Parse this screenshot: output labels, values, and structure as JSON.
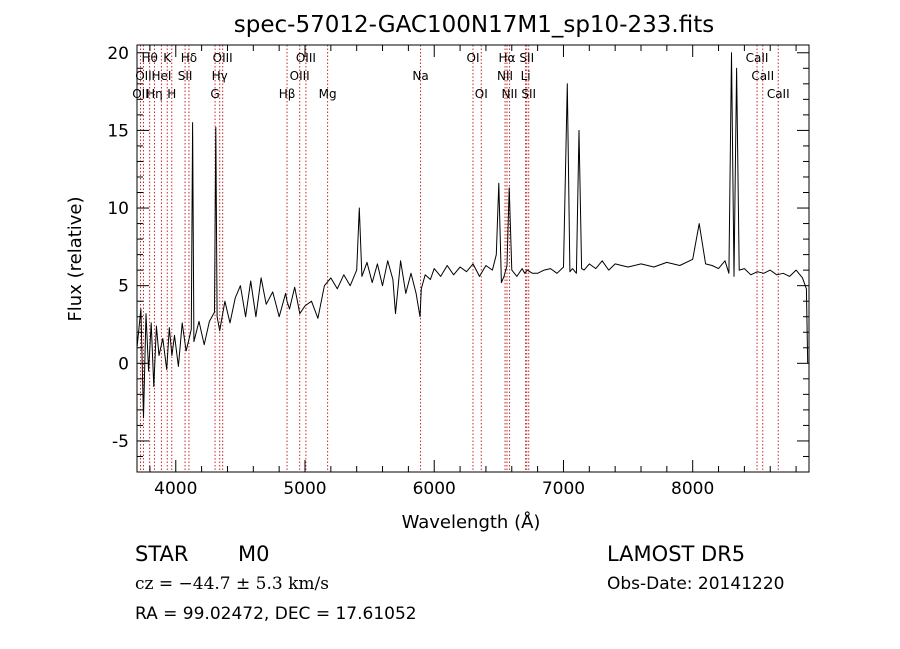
{
  "chart_data": {
    "type": "line",
    "title": "spec-57012-GAC100N17M1_sp10-233.fits",
    "xlabel": "Wavelength (Å)",
    "ylabel": "Flux (relative)",
    "xlim": [
      3700,
      8900
    ],
    "ylim": [
      -7,
      20.5
    ],
    "xticks": [
      4000,
      5000,
      6000,
      7000,
      8000
    ],
    "xtick_labels": [
      "4000",
      "5000",
      "6000",
      "7000",
      "8000"
    ],
    "yticks": [
      -5,
      0,
      5,
      10,
      15,
      20
    ],
    "ytick_labels": [
      "-5",
      "0",
      "5",
      "10",
      "15",
      "20"
    ],
    "grid": false,
    "series": [
      {
        "color": "#000000",
        "x": [
          3700,
          3730,
          3750,
          3770,
          3790,
          3810,
          3830,
          3850,
          3870,
          3900,
          3930,
          3950,
          3970,
          3990,
          4020,
          4050,
          4080,
          4101,
          4120,
          4130,
          4140,
          4180,
          4220,
          4260,
          4300,
          4310,
          4320,
          4340,
          4380,
          4420,
          4460,
          4500,
          4540,
          4580,
          4620,
          4660,
          4700,
          4750,
          4800,
          4850,
          4861,
          4880,
          4920,
          4960,
          5000,
          5050,
          5100,
          5150,
          5200,
          5250,
          5300,
          5350,
          5400,
          5420,
          5440,
          5480,
          5520,
          5560,
          5600,
          5640,
          5680,
          5700,
          5740,
          5780,
          5820,
          5860,
          5890,
          5900,
          5930,
          5970,
          6000,
          6050,
          6100,
          6150,
          6200,
          6250,
          6300,
          6350,
          6400,
          6450,
          6480,
          6500,
          6520,
          6540,
          6563,
          6580,
          6600,
          6640,
          6680,
          6700,
          6720,
          6760,
          6800,
          6850,
          6900,
          6950,
          7000,
          7030,
          7050,
          7070,
          7100,
          7120,
          7140,
          7160,
          7200,
          7250,
          7300,
          7350,
          7400,
          7450,
          7500,
          7600,
          7700,
          7800,
          7900,
          8000,
          8050,
          8100,
          8150,
          8200,
          8250,
          8280,
          8300,
          8320,
          8340,
          8360,
          8400,
          8450,
          8500,
          8550,
          8600,
          8650,
          8700,
          8750,
          8800,
          8850,
          8880,
          8890
        ],
        "y": [
          1.0,
          3.5,
          -3.5,
          3.2,
          -0.5,
          2.6,
          -1.5,
          2.4,
          0.5,
          1.6,
          -0.4,
          2.3,
          0.5,
          1.8,
          -0.2,
          2.6,
          0.8,
          1.5,
          2.2,
          15.5,
          1.4,
          2.7,
          1.2,
          2.7,
          3.3,
          15.2,
          3.0,
          2.1,
          4.0,
          2.6,
          4.2,
          5.0,
          3.0,
          5.3,
          3.0,
          5.5,
          3.8,
          4.6,
          3.0,
          4.5,
          4.0,
          3.5,
          4.9,
          3.2,
          3.7,
          4.0,
          2.9,
          5.0,
          5.5,
          4.8,
          5.7,
          5.0,
          6.0,
          10.0,
          5.6,
          6.5,
          5.2,
          6.4,
          5.0,
          6.6,
          5.4,
          3.2,
          6.6,
          4.5,
          5.8,
          4.5,
          3.0,
          4.8,
          5.7,
          5.4,
          6.1,
          5.6,
          6.3,
          5.7,
          6.2,
          5.9,
          6.4,
          5.6,
          6.3,
          6.0,
          7.0,
          11.6,
          5.2,
          5.6,
          6.3,
          11.3,
          6.0,
          5.6,
          6.1,
          5.8,
          6.0,
          5.8,
          5.8,
          6.0,
          6.1,
          5.8,
          6.2,
          18.0,
          5.9,
          6.1,
          5.8,
          15.0,
          6.1,
          6.0,
          6.4,
          6.1,
          6.6,
          6.0,
          6.4,
          6.3,
          6.2,
          6.4,
          6.2,
          6.5,
          6.3,
          6.7,
          9.0,
          6.4,
          6.3,
          6.1,
          6.6,
          5.8,
          20.0,
          5.6,
          19.0,
          6.0,
          6.1,
          5.7,
          5.9,
          5.8,
          6.0,
          5.7,
          5.8,
          5.6,
          6.0,
          5.5,
          4.8,
          0.0
        ]
      }
    ],
    "line_markers": [
      {
        "wl": 3727,
        "row": 2,
        "label": "OII"
      },
      {
        "wl": 3750,
        "row": 1,
        "label": "OII"
      },
      {
        "wl": 3798,
        "row": 0,
        "label": "Hθ"
      },
      {
        "wl": 3835,
        "row": 2,
        "label": "Hη"
      },
      {
        "wl": 3889,
        "row": 1,
        "label": "HeI"
      },
      {
        "wl": 3934,
        "row": 0,
        "label": "K"
      },
      {
        "wl": 3969,
        "row": 2,
        "label": "H"
      },
      {
        "wl": 4072,
        "row": 1,
        "label": "SII"
      },
      {
        "wl": 4102,
        "row": 0,
        "label": "Hδ"
      },
      {
        "wl": 4304,
        "row": 2,
        "label": "G"
      },
      {
        "wl": 4340,
        "row": 1,
        "label": "Hγ"
      },
      {
        "wl": 4363,
        "row": 0,
        "label": "OIII"
      },
      {
        "wl": 4861,
        "row": 2,
        "label": "Hβ"
      },
      {
        "wl": 4959,
        "row": 1,
        "label": "OIII"
      },
      {
        "wl": 5007,
        "row": 0,
        "label": "OIII"
      },
      {
        "wl": 5175,
        "row": 2,
        "label": "Mg"
      },
      {
        "wl": 5894,
        "row": 1,
        "label": "Na"
      },
      {
        "wl": 6300,
        "row": 0,
        "label": "OI"
      },
      {
        "wl": 6364,
        "row": 2,
        "label": "OI"
      },
      {
        "wl": 6548,
        "row": 1,
        "label": "NII"
      },
      {
        "wl": 6563,
        "row": 0,
        "label": "Hα"
      },
      {
        "wl": 6583,
        "row": 2,
        "label": "NII"
      },
      {
        "wl": 6707,
        "row": 1,
        "label": "Li"
      },
      {
        "wl": 6716,
        "row": 0,
        "label": "SII"
      },
      {
        "wl": 6731,
        "row": 2,
        "label": "SII"
      },
      {
        "wl": 8498,
        "row": 0,
        "label": "CaII"
      },
      {
        "wl": 8542,
        "row": 1,
        "label": "CaII"
      },
      {
        "wl": 8662,
        "row": 2,
        "label": "CaII"
      }
    ]
  },
  "info": {
    "class": "STAR",
    "subclass": "M0",
    "cz": "cz = −44.7 ± 5.3 km/s",
    "coords": "RA =  99.02472, DEC =  17.61052",
    "survey": "LAMOST DR5",
    "obsdate": "Obs-Date: 20141220"
  }
}
